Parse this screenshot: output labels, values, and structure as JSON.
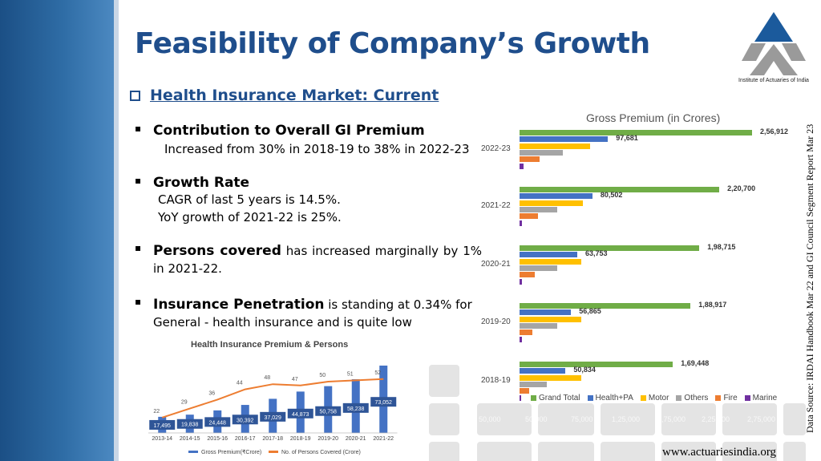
{
  "slide": {
    "title": "Feasibility of Company’s Growth",
    "logo_caption": "Institute of Actuaries of India",
    "section_heading": "Health Insurance Market: Current",
    "url": "www.actuariesindia.org",
    "data_source": "Data Source: IRDAI Handbook Mar 22 and GI Council Segment Report Mar 23"
  },
  "bullets": {
    "b1_head": "Contribution to Overall GI Premium",
    "b1_line1": "Increased from 30% in 2018-19 to 38% in 2022-23",
    "b2_head": "Growth Rate",
    "b2_line1": "CAGR of last 5 years is 14.5%.",
    "b2_line2": "YoY growth of 2021-22 is 25%.",
    "b3_head": "Persons covered",
    "b3_rest": " has increased marginally by 1% in 2021-22.",
    "b4_head": "Insurance Penetration",
    "b4_rest": " is standing at 0.34% for General - health insurance and is quite low"
  },
  "colors": {
    "grand_total": "#70ad47",
    "health_pa": "#4472c4",
    "motor": "#ffc000",
    "others": "#a5a5a5",
    "fire": "#ed7d31",
    "marine": "#7030a0",
    "title_blue": "#1f4e8c"
  },
  "chart_data": [
    {
      "type": "bar",
      "orientation": "horizontal",
      "title": "Gross Premium (in Crores)",
      "categories": [
        "2022-23",
        "2021-22",
        "2020-21",
        "2019-20",
        "2018-19"
      ],
      "series": [
        {
          "name": "Grand Total",
          "values": [
            256912,
            220700,
            198715,
            188917,
            169448
          ],
          "labels": [
            "2,56,912",
            "2,20,700",
            "1,98,715",
            "1,88,917",
            "1,69,448"
          ]
        },
        {
          "name": "Health+PA",
          "values": [
            97681,
            80502,
            63753,
            56865,
            50834
          ],
          "labels": [
            "97,681",
            "80,502",
            "63,753",
            "56,865",
            "50,834"
          ]
        },
        {
          "name": "Motor",
          "values": [
            78000,
            70000,
            68000,
            68000,
            68000
          ]
        },
        {
          "name": "Others",
          "values": [
            48000,
            42000,
            42000,
            42000,
            30000
          ]
        },
        {
          "name": "Fire",
          "values": [
            22000,
            20000,
            17000,
            14000,
            11000
          ]
        },
        {
          "name": "Marine",
          "values": [
            4000,
            3000,
            3000,
            3000,
            2000
          ]
        }
      ],
      "legend": "bottom",
      "faded_ticks": [
        "50,000",
        "50,000",
        "75,000",
        "1,25,000",
        "1,75,000",
        "2,25,000",
        "2,75,000"
      ]
    },
    {
      "type": "bar",
      "title": "Health Insurance Premium & Persons",
      "categories": [
        "2013-14",
        "2014-15",
        "2015-16",
        "2016-17",
        "2017-18",
        "2018-19",
        "2019-20",
        "2020-21",
        "2021-22"
      ],
      "series": [
        {
          "name": "Gross Premium(₹Crore)",
          "type": "bar",
          "values": [
            17495,
            19838,
            24448,
            30392,
            37029,
            44873,
            50758,
            58238,
            73052
          ],
          "labels": [
            "17,495",
            "19,838",
            "24,448",
            "30,392",
            "37,029",
            "44,873",
            "50,758",
            "58,238",
            "73,052"
          ]
        },
        {
          "name": "No. of Persons Covered (Crore)",
          "type": "line",
          "values": [
            22,
            29,
            36,
            44,
            48,
            47,
            50,
            51,
            52
          ]
        }
      ],
      "legend": "bottom"
    }
  ]
}
